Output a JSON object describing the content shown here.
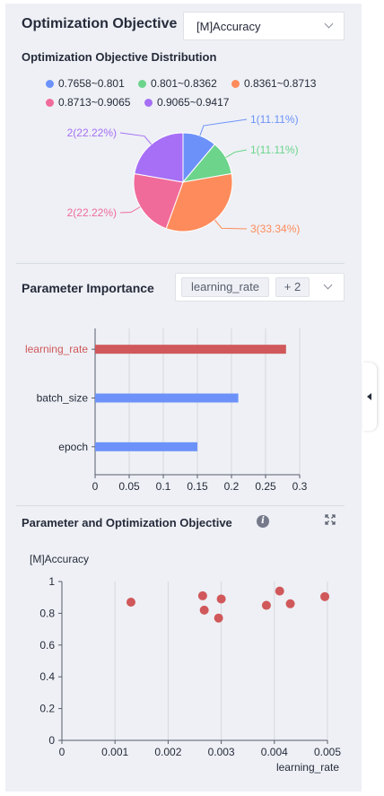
{
  "objective": {
    "title": "Optimization Objective",
    "selected": "[M]Accuracy",
    "distribution_title": "Optimization Objective Distribution"
  },
  "importance": {
    "title": "Parameter Importance",
    "selected_tag": "learning_rate",
    "more_tag": "+ 2"
  },
  "scatter_section": {
    "title": "Parameter and Optimization Objective"
  },
  "icons": {
    "info": "info-icon",
    "expand": "expand-icon",
    "collapse": "caret-left-icon",
    "dropdown": "chevron-down-icon"
  },
  "chart_data": [
    {
      "type": "pie",
      "legend": [
        "0.7658~0.801",
        "0.801~0.8362",
        "0.8361~0.8713",
        "0.8713~0.9065",
        "0.9065~0.9417"
      ],
      "values": [
        1,
        1,
        3,
        2,
        2
      ],
      "labels": [
        "1(11.11%)",
        "1(11.11%)",
        "3(33.34%)",
        "2(22.22%)",
        "2(22.22%)"
      ],
      "colors": [
        "#6c92fa",
        "#6cd48b",
        "#fe8b5b",
        "#f16b9a",
        "#a66ff6"
      ]
    },
    {
      "type": "bar",
      "orientation": "horizontal",
      "categories": [
        "learning_rate",
        "batch_size",
        "epoch"
      ],
      "values": [
        0.28,
        0.21,
        0.15
      ],
      "colors": [
        "#d0585a",
        "#6c92fa",
        "#6c92fa"
      ],
      "xlim": [
        0,
        0.3
      ],
      "xticks": [
        "0",
        "0.05",
        "0.1",
        "0.15",
        "0.2",
        "0.25",
        "0.3"
      ]
    },
    {
      "type": "scatter",
      "ylabel": "[M]Accuracy",
      "xlabel": "learning_rate",
      "xlim": [
        0,
        0.005
      ],
      "ylim": [
        0,
        1
      ],
      "xticks": [
        "0",
        "0.001",
        "0.002",
        "0.003",
        "0.004",
        "0.005"
      ],
      "yticks": [
        "0",
        "0.2",
        "0.4",
        "0.6",
        "0.8",
        "1"
      ],
      "color": "#d0585a",
      "points": [
        [
          0.0013,
          0.87
        ],
        [
          0.00265,
          0.91
        ],
        [
          0.00268,
          0.82
        ],
        [
          0.00295,
          0.77
        ],
        [
          0.003,
          0.89
        ],
        [
          0.00385,
          0.85
        ],
        [
          0.0041,
          0.94
        ],
        [
          0.0043,
          0.86
        ],
        [
          0.00495,
          0.905
        ]
      ]
    }
  ]
}
